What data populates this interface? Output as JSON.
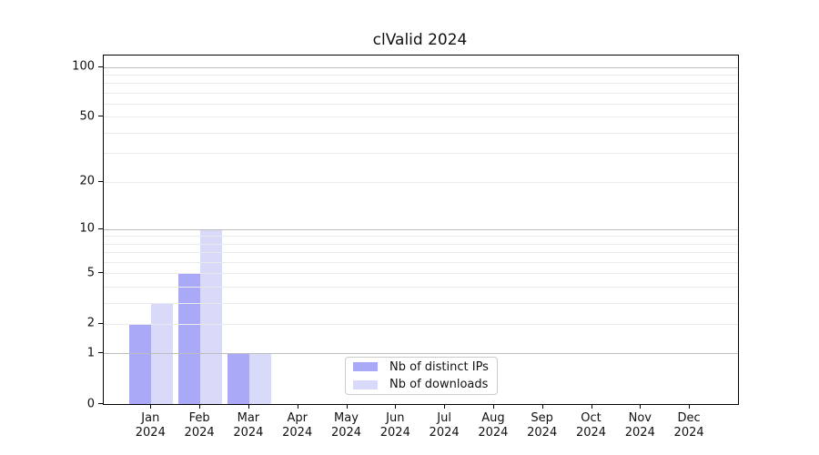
{
  "title": "clValid 2024",
  "colors": {
    "distinct_ips": "#a9a9f7",
    "downloads": "#d9d9f9",
    "major_grid": "#bdbdbd",
    "minor_grid": "#eaeaea",
    "axis": "#000000",
    "text": "#111111"
  },
  "legend": {
    "items": [
      {
        "label": "Nb of distinct IPs",
        "series": "distinct_ips"
      },
      {
        "label": "Nb of downloads",
        "series": "downloads"
      }
    ]
  },
  "chart_data": {
    "type": "bar",
    "title": "clValid 2024",
    "scale": "log1p",
    "grid": "horizontal major+minor, drawn above bars",
    "legend_position": "lower center",
    "categories": [
      {
        "month": "Jan",
        "year": "2024"
      },
      {
        "month": "Feb",
        "year": "2024"
      },
      {
        "month": "Mar",
        "year": "2024"
      },
      {
        "month": "Apr",
        "year": "2024"
      },
      {
        "month": "May",
        "year": "2024"
      },
      {
        "month": "Jun",
        "year": "2024"
      },
      {
        "month": "Jul",
        "year": "2024"
      },
      {
        "month": "Aug",
        "year": "2024"
      },
      {
        "month": "Sep",
        "year": "2024"
      },
      {
        "month": "Oct",
        "year": "2024"
      },
      {
        "month": "Nov",
        "year": "2024"
      },
      {
        "month": "Dec",
        "year": "2024"
      }
    ],
    "series": [
      {
        "name": "Nb of distinct IPs",
        "key": "distinct_ips",
        "values": [
          2,
          5,
          1,
          0,
          0,
          0,
          0,
          0,
          0,
          0,
          0,
          0
        ]
      },
      {
        "name": "Nb of downloads",
        "key": "downloads",
        "values": [
          3,
          10,
          1,
          0,
          0,
          0,
          0,
          0,
          0,
          0,
          0,
          0
        ]
      }
    ],
    "xlabel": "",
    "ylabel": "",
    "ylim": [
      0,
      117
    ],
    "y_ticks": [
      0,
      1,
      2,
      5,
      10,
      20,
      50,
      100
    ],
    "y_major_gridlines": [
      1,
      10,
      100
    ],
    "y_minor_gridlines": [
      2,
      3,
      4,
      5,
      6,
      7,
      8,
      9,
      20,
      30,
      40,
      50,
      60,
      70,
      80,
      90
    ]
  }
}
